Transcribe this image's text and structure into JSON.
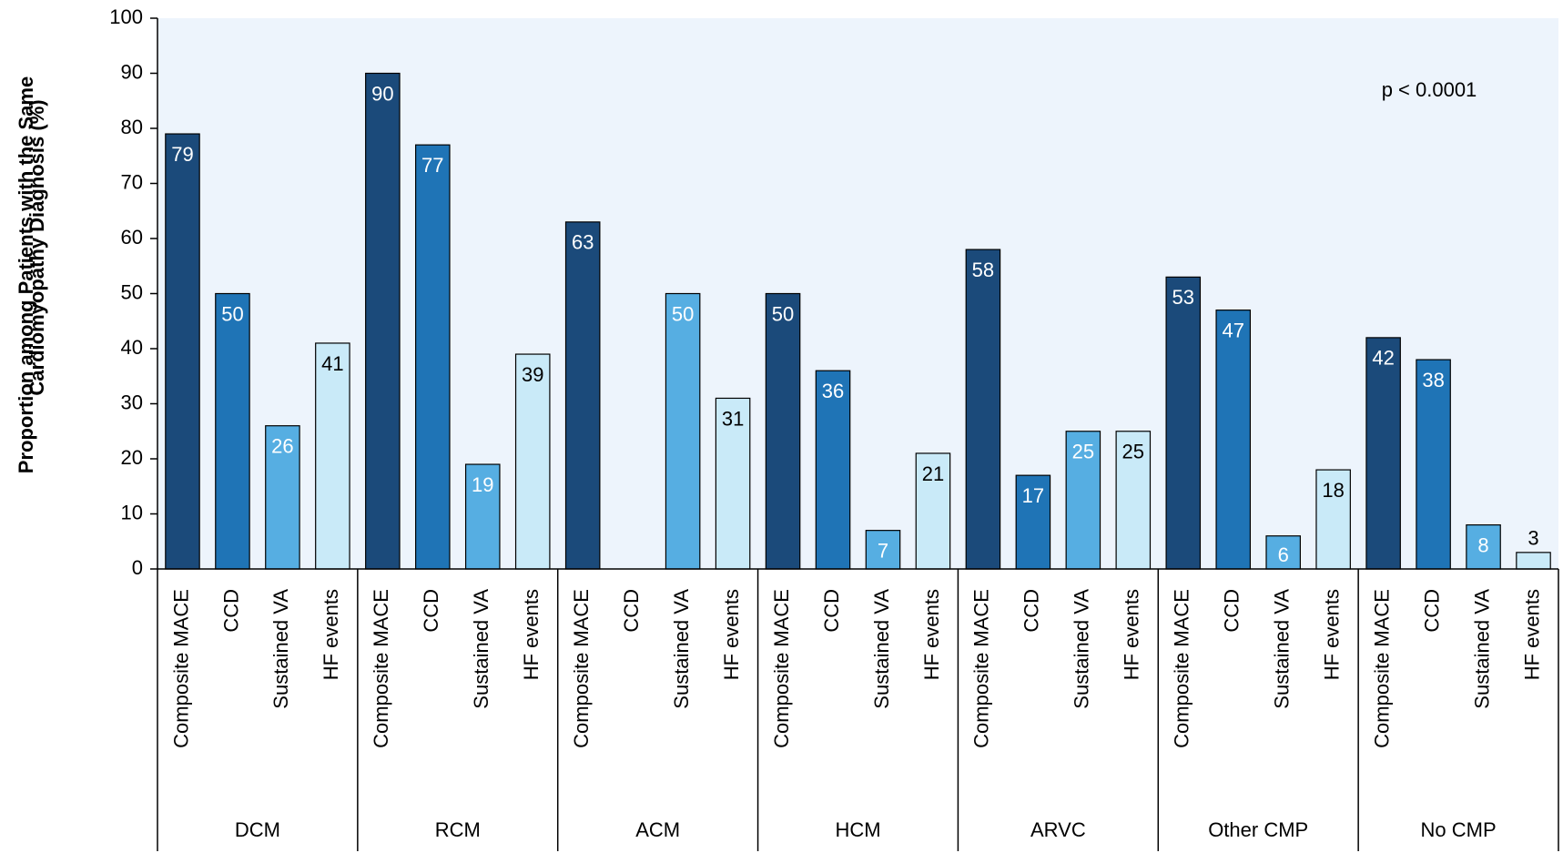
{
  "chart_data": {
    "type": "bar",
    "y_label": [
      "Proportion among Patients with the Same",
      "Cardiomyopathy Diagnosis (%)"
    ],
    "annotation": "p < 0.0001",
    "categories": [
      "DCM",
      "RCM",
      "ACM",
      "HCM",
      "ARVC",
      "Other CMP",
      "No CMP"
    ],
    "series": [
      {
        "name": "Composite MACE",
        "color": "#1b4a7a",
        "label_color": "#ffffff",
        "values": [
          79,
          90,
          63,
          50,
          58,
          53,
          42
        ]
      },
      {
        "name": "CCD",
        "color": "#1f74b6",
        "label_color": "#ffffff",
        "values": [
          50,
          77,
          null,
          36,
          17,
          47,
          38
        ]
      },
      {
        "name": "Sustained VA",
        "color": "#56aee2",
        "label_color": "#ffffff",
        "values": [
          26,
          19,
          50,
          7,
          25,
          6,
          8
        ]
      },
      {
        "name": "HF events",
        "color": "#c9eaf8",
        "label_color": "#000000",
        "values": [
          41,
          39,
          31,
          21,
          25,
          18,
          3
        ]
      }
    ],
    "ylim": [
      0,
      100
    ],
    "yticks": [
      0,
      10,
      20,
      30,
      40,
      50,
      60,
      70,
      80,
      90,
      100
    ],
    "background": "#edf4fc"
  }
}
